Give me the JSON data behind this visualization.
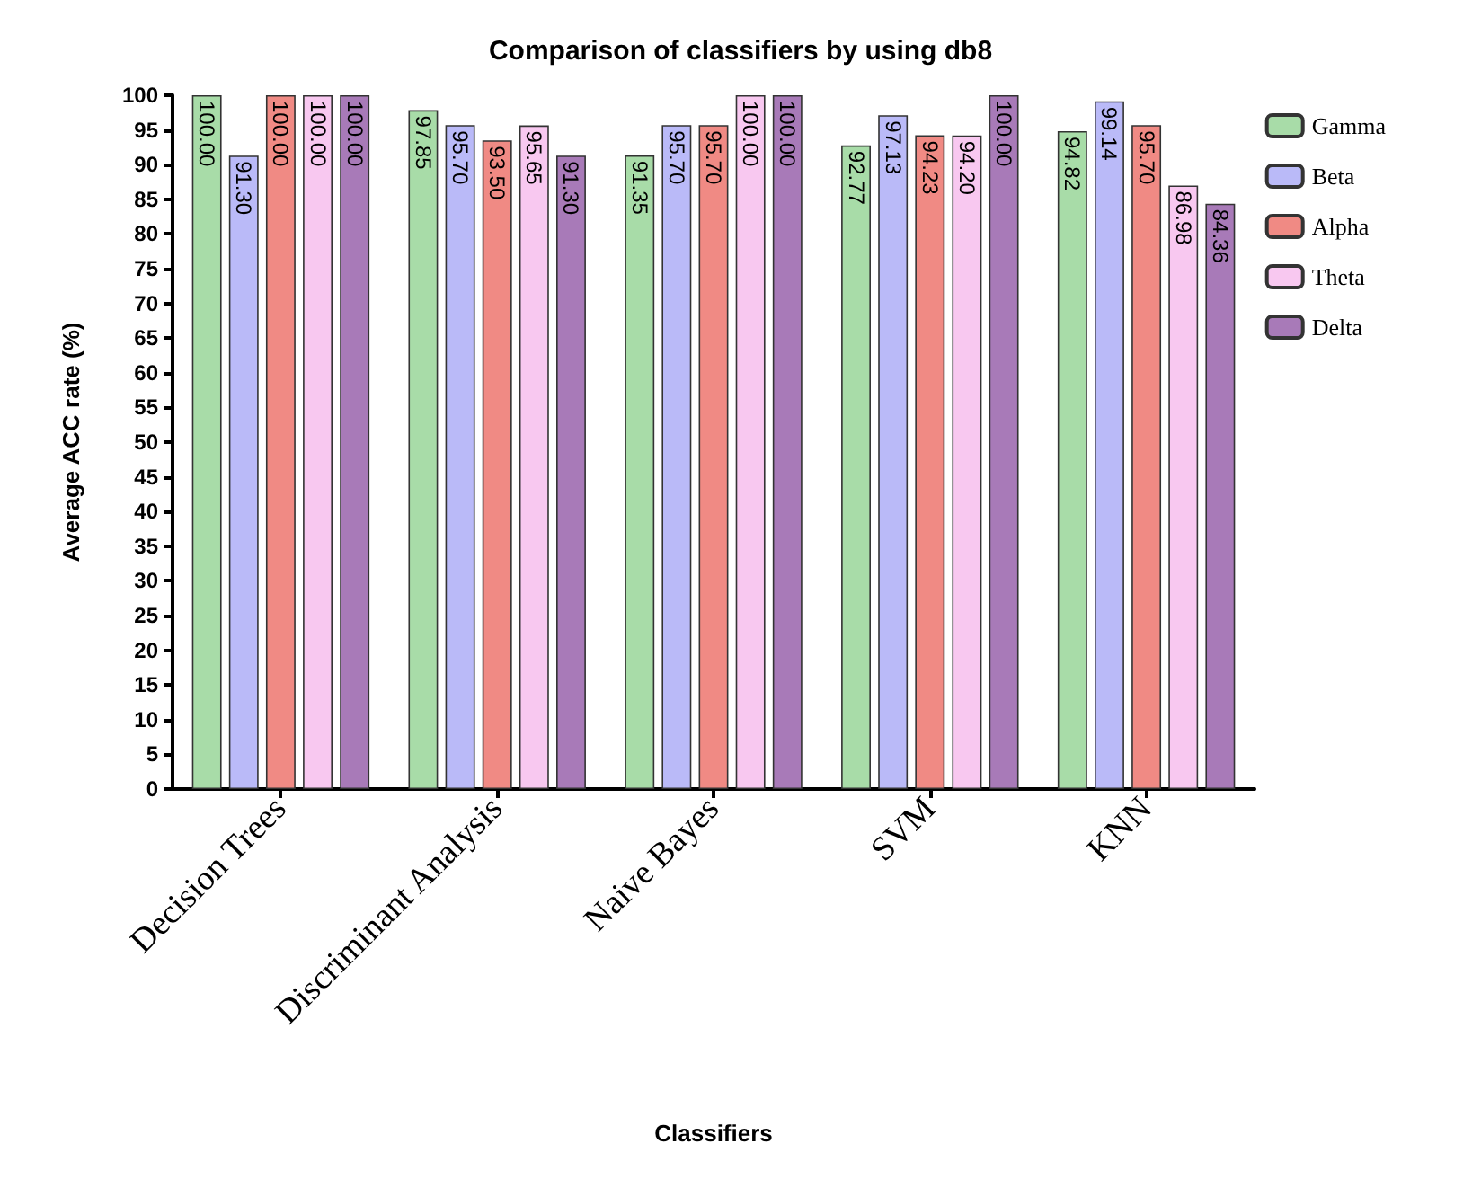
{
  "chart_data": {
    "type": "bar",
    "title": "Comparison of classifiers by using db8",
    "xlabel": "Classifiers",
    "ylabel": "Average ACC rate (%)",
    "categories": [
      "Decision Trees",
      "Discriminant Analysis",
      "Naive Bayes",
      "SVM",
      "KNN"
    ],
    "series": [
      {
        "name": "Gamma",
        "color": "#a8dca8",
        "values": [
          100,
          97.85,
          91.35,
          92.77,
          94.82
        ],
        "value_labels": [
          "100.00",
          "97.85",
          "91.35",
          "92.77",
          "94.82"
        ]
      },
      {
        "name": "Beta",
        "color": "#babaf8",
        "values": [
          91.3,
          95.7,
          95.7,
          97.13,
          99.14
        ],
        "value_labels": [
          "91.30",
          "95.70",
          "95.70",
          "97.13",
          "99.14"
        ]
      },
      {
        "name": "Alpha",
        "color": "#f08a84",
        "values": [
          100,
          93.5,
          95.7,
          94.23,
          95.7
        ],
        "value_labels": [
          "100.00",
          "93.50",
          "95.70",
          "94.23",
          "95.70"
        ]
      },
      {
        "name": "Theta",
        "color": "#f8c8f0",
        "values": [
          100,
          95.65,
          100,
          94.2,
          86.98
        ],
        "value_labels": [
          "100.00",
          "95.65",
          "100.00",
          "94.20",
          "86.98"
        ]
      },
      {
        "name": "Delta",
        "color": "#a87ab8",
        "values": [
          100,
          91.3,
          100,
          100,
          84.36
        ],
        "value_labels": [
          "100.00",
          "91.30",
          "100.00",
          "100.00",
          "84.36"
        ]
      }
    ],
    "ylim": [
      0,
      100
    ],
    "yticks": [
      0,
      5,
      10,
      15,
      20,
      25,
      30,
      35,
      40,
      45,
      50,
      55,
      60,
      65,
      70,
      75,
      80,
      85,
      90,
      95,
      100
    ],
    "grid": false,
    "legend": "top right"
  }
}
